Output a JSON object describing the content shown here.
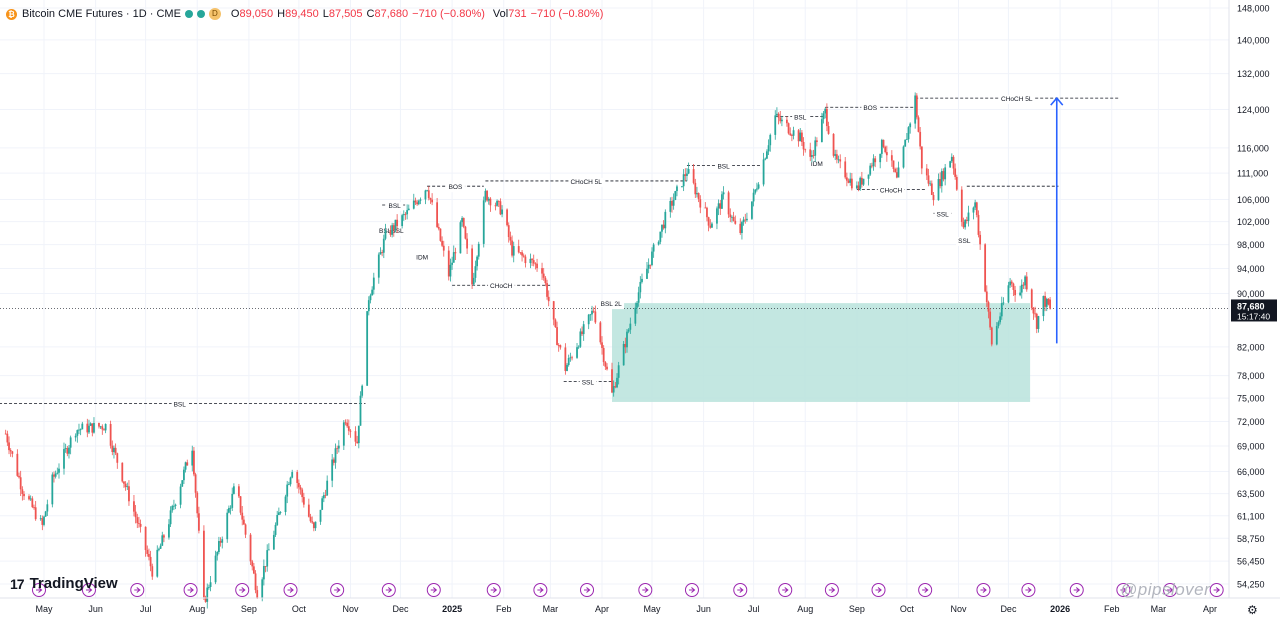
{
  "header": {
    "symbol_title": "Bitcoin CME Futures · 1D · CME",
    "coin_glyph": "₿",
    "badge": "D",
    "open_key": "O",
    "open": "89,050",
    "high_key": "H",
    "high": "89,450",
    "low_key": "L",
    "low": "87,505",
    "close_key": "C",
    "close": "87,680",
    "change": "−710 (−0.80%)",
    "vol_key": "Vol",
    "vol": "731",
    "vol_change": "−710 (−0.80%)",
    "status_colors": {
      "dot1": "#26a69a",
      "dot2": "#26a69a"
    }
  },
  "branding": {
    "logo_mark": "17",
    "logo_text": "TradingView",
    "watermark": "@pipslover",
    "settings_icon": "⚙"
  },
  "colors": {
    "up": "#26a69a",
    "down": "#ef5350",
    "zone": "#b9e3dc",
    "arrow": "#2962ff",
    "grid": "#f0f3fa",
    "text": "#131722",
    "event": "#9c27b0"
  },
  "chart_data": {
    "type": "candlestick",
    "title": "Bitcoin CME Futures · 1D · CME",
    "scale": "log",
    "ylim": [
      52000,
      152000
    ],
    "last_price": "87,680",
    "countdown": "15:17:40",
    "y_ticks": [
      "148,000",
      "140,000",
      "132,000",
      "124,000",
      "116,000",
      "111,000",
      "106,000",
      "102,000",
      "98,000",
      "94,000",
      "90,000",
      "82,000",
      "78,000",
      "75,000",
      "72,000",
      "69,000",
      "66,000",
      "63,500",
      "61,100",
      "58,750",
      "56,450",
      "54,250"
    ],
    "y_tick_values": [
      148000,
      140000,
      132000,
      124000,
      116000,
      111000,
      106000,
      102000,
      98000,
      94000,
      90000,
      82000,
      78000,
      75000,
      72000,
      69000,
      66000,
      63500,
      61100,
      58750,
      56450,
      54250
    ],
    "x_ticks": [
      "May",
      "Jun",
      "Jul",
      "Aug",
      "Sep",
      "Oct",
      "Nov",
      "Dec",
      "2025",
      "Feb",
      "Mar",
      "Apr",
      "May",
      "Jun",
      "Jul",
      "Aug",
      "Sep",
      "Oct",
      "Nov",
      "Dec",
      "2026",
      "Feb",
      "Mar",
      "Apr"
    ],
    "x_tick_dates": [
      "2024-05-01",
      "2024-06-01",
      "2024-07-01",
      "2024-08-01",
      "2024-09-01",
      "2024-10-01",
      "2024-11-01",
      "2024-12-01",
      "2025-01-01",
      "2025-02-01",
      "2025-03-01",
      "2025-04-01",
      "2025-05-01",
      "2025-06-01",
      "2025-07-01",
      "2025-08-01",
      "2025-09-01",
      "2025-10-01",
      "2025-11-01",
      "2025-12-01",
      "2026-01-01",
      "2026-02-01",
      "2026-03-01",
      "2026-04-01"
    ],
    "path": [
      [
        "2024-04-08",
        70500
      ],
      [
        "2024-04-18",
        64000
      ],
      [
        "2024-04-30",
        60000
      ],
      [
        "2024-05-06",
        65000
      ],
      [
        "2024-05-20",
        71000
      ],
      [
        "2024-06-07",
        71500
      ],
      [
        "2024-06-25",
        61000
      ],
      [
        "2024-07-05",
        55500
      ],
      [
        "2024-07-14",
        60000
      ],
      [
        "2024-07-29",
        69000
      ],
      [
        "2024-08-05",
        52500
      ],
      [
        "2024-08-24",
        64500
      ],
      [
        "2024-09-06",
        53500
      ],
      [
        "2024-09-27",
        66500
      ],
      [
        "2024-10-10",
        59500
      ],
      [
        "2024-10-29",
        72500
      ],
      [
        "2024-11-05",
        69500
      ],
      [
        "2024-11-12",
        89500
      ],
      [
        "2024-11-22",
        99500
      ],
      [
        "2024-12-05",
        103500
      ],
      [
        "2024-12-17",
        108500
      ],
      [
        "2024-12-30",
        93000
      ],
      [
        "2025-01-07",
        102000
      ],
      [
        "2025-01-13",
        91500
      ],
      [
        "2025-01-21",
        107000
      ],
      [
        "2025-01-31",
        104000
      ],
      [
        "2025-02-06",
        97000
      ],
      [
        "2025-02-24",
        94000
      ],
      [
        "2025-03-04",
        84000
      ],
      [
        "2025-03-10",
        79000
      ],
      [
        "2025-03-27",
        87500
      ],
      [
        "2025-04-07",
        75500
      ],
      [
        "2025-04-22",
        89500
      ],
      [
        "2025-05-10",
        103500
      ],
      [
        "2025-05-22",
        111500
      ],
      [
        "2025-06-05",
        101500
      ],
      [
        "2025-06-13",
        106500
      ],
      [
        "2025-06-22",
        99500
      ],
      [
        "2025-07-01",
        106500
      ],
      [
        "2025-07-14",
        122500
      ],
      [
        "2025-07-29",
        118000
      ],
      [
        "2025-08-04",
        113500
      ],
      [
        "2025-08-13",
        123500
      ],
      [
        "2025-08-19",
        113500
      ],
      [
        "2025-09-01",
        108000
      ],
      [
        "2025-09-17",
        117000
      ],
      [
        "2025-09-25",
        109500
      ],
      [
        "2025-10-06",
        126500
      ],
      [
        "2025-10-10",
        112500
      ],
      [
        "2025-10-17",
        107000
      ],
      [
        "2025-10-28",
        114500
      ],
      [
        "2025-11-04",
        101000
      ],
      [
        "2025-11-11",
        105500
      ],
      [
        "2025-11-21",
        82500
      ],
      [
        "2025-12-02",
        92000
      ],
      [
        "2025-12-07",
        89500
      ],
      [
        "2025-12-11",
        92500
      ],
      [
        "2025-12-18",
        85500
      ],
      [
        "2025-12-22",
        89000
      ],
      [
        "2025-12-26",
        87680
      ]
    ],
    "annotations": [
      {
        "label": "BSL",
        "type": "hline",
        "from": "2024-04-01",
        "to": "2024-11-10",
        "y": 74300
      },
      {
        "label": "BSL",
        "type": "hline",
        "from": "2024-11-20",
        "to": "2024-12-05",
        "y": 105000
      },
      {
        "label": "BSLBSL",
        "type": "hline",
        "from": "2024-11-20",
        "to": "2024-12-01",
        "y": 100500
      },
      {
        "label": "IDM",
        "type": "label",
        "from": "2024-12-14",
        "to": "2024-12-14",
        "y": 96000
      },
      {
        "label": "BOS",
        "type": "hline",
        "from": "2024-12-17",
        "to": "2025-01-20",
        "y": 108500
      },
      {
        "label": "CHoCH 5L",
        "type": "hline",
        "from": "2025-01-21",
        "to": "2025-05-22",
        "y": 109500
      },
      {
        "label": "CHoCH",
        "type": "hline",
        "from": "2025-01-01",
        "to": "2025-03-01",
        "y": 91300
      },
      {
        "label": "BSL 2L",
        "type": "hline",
        "from": "2025-04-01",
        "to": "2025-04-12",
        "y": 88500
      },
      {
        "label": "SSL",
        "type": "hline",
        "from": "2025-03-09",
        "to": "2025-04-07",
        "y": 77200
      },
      {
        "label": "BSL",
        "type": "hline",
        "from": "2025-05-22",
        "to": "2025-07-05",
        "y": 112500
      },
      {
        "label": "BSL",
        "type": "hline",
        "from": "2025-07-14",
        "to": "2025-08-13",
        "y": 122500
      },
      {
        "label": "BOS",
        "type": "hline",
        "from": "2025-08-13",
        "to": "2025-10-06",
        "y": 124500
      },
      {
        "label": "CHoCH 5L",
        "type": "hline",
        "from": "2025-10-06",
        "to": "2026-02-05",
        "y": 126500
      },
      {
        "label": "IDM",
        "type": "label",
        "from": "2025-08-08",
        "to": "2025-08-08",
        "y": 113000
      },
      {
        "label": "CHoCH",
        "type": "hline",
        "from": "2025-09-01",
        "to": "2025-10-12",
        "y": 107900
      },
      {
        "label": "SSL",
        "type": "hline",
        "from": "2025-10-17",
        "to": "2025-10-28",
        "y": 103500
      },
      {
        "label": "SSL",
        "type": "hline",
        "from": "2025-11-03",
        "to": "2025-11-06",
        "y": 98800
      },
      {
        "label": "",
        "type": "hline",
        "from": "2025-11-06",
        "to": "2025-12-31",
        "y": 108500
      }
    ],
    "zone": {
      "from": "2025-04-07",
      "to": "2025-12-14",
      "y_top": 88500,
      "y_bottom": 74500
    },
    "arrow": {
      "at": "2025-12-30",
      "from_y": 82500,
      "to_y": 126500
    },
    "event_dates": [
      "2024-04-28",
      "2024-05-28",
      "2024-06-26",
      "2024-07-28",
      "2024-08-28",
      "2024-09-26",
      "2024-10-24",
      "2024-11-24",
      "2024-12-21",
      "2025-01-26",
      "2025-02-23",
      "2025-03-23",
      "2025-04-27",
      "2025-05-25",
      "2025-06-23",
      "2025-07-20",
      "2025-08-17",
      "2025-09-14",
      "2025-10-12",
      "2025-11-16",
      "2025-12-13",
      "2026-01-11",
      "2026-02-08",
      "2026-03-08",
      "2026-04-05"
    ]
  }
}
